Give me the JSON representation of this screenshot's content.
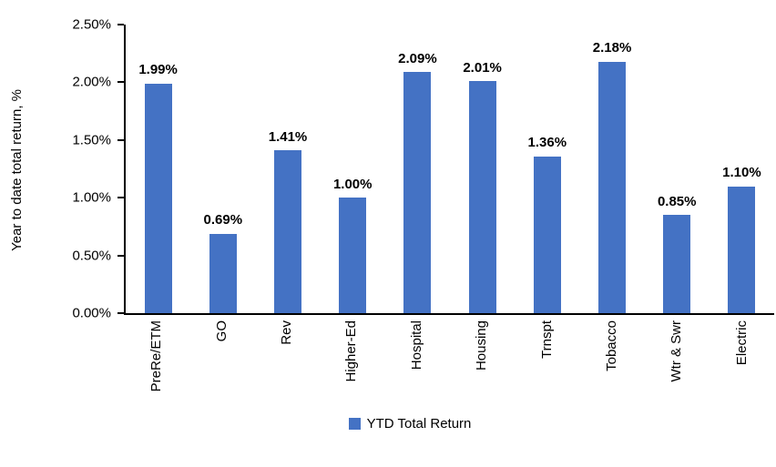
{
  "chart_data": {
    "type": "bar",
    "categories": [
      "PreRe/ETM",
      "GO",
      "Rev",
      "Higher-Ed",
      "Hospital",
      "Housing",
      "Trnspt",
      "Tobacco",
      "Wtr & Swr",
      "Electric"
    ],
    "values": [
      1.99,
      0.69,
      1.41,
      1.0,
      2.09,
      2.01,
      1.36,
      2.18,
      0.85,
      1.1
    ],
    "value_labels": [
      "1.99%",
      "0.69%",
      "1.41%",
      "1.00%",
      "2.09%",
      "2.01%",
      "1.36%",
      "2.18%",
      "0.85%",
      "1.10%"
    ],
    "title": "",
    "xlabel": "",
    "ylabel": "Year to date total return, %",
    "ylim": [
      0,
      2.5
    ],
    "ytick_values": [
      0,
      0.5,
      1.0,
      1.5,
      2.0,
      2.5
    ],
    "ytick_labels": [
      "0.00%",
      "0.50%",
      "1.00%",
      "1.50%",
      "2.00%",
      "2.50%"
    ],
    "grid": false,
    "legend_label": "YTD Total Return",
    "legend_position": "bottom",
    "bar_color": "#4472C4",
    "axis_color": "#000000",
    "text_color": "#000000"
  }
}
